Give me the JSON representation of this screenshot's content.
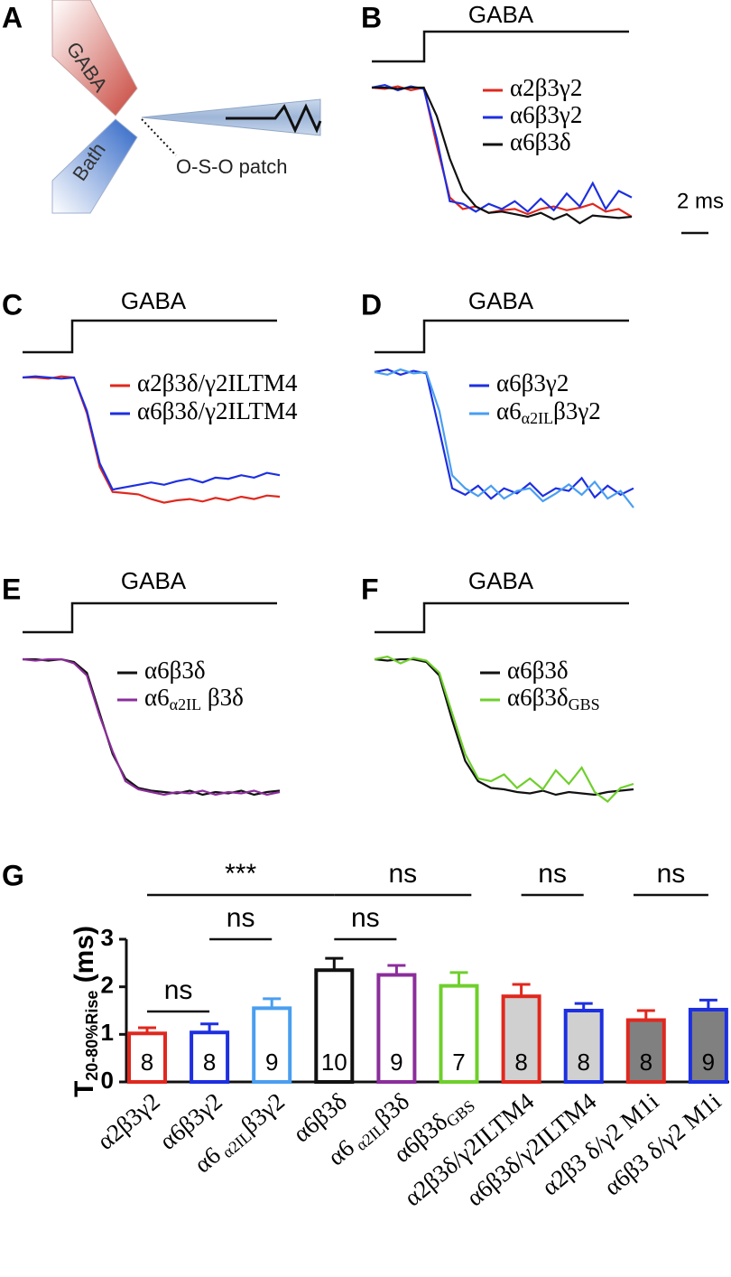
{
  "diagram": {
    "label": "A",
    "inlet": "GABA",
    "bath": "Bath",
    "patch": "O-S-O patch"
  },
  "chart_data": [
    {
      "type": "line",
      "label": "B",
      "title": "GABA",
      "scale_bar": "2 ms",
      "xlim": [
        0,
        20
      ],
      "ylim": [
        0,
        1
      ],
      "x": [
        0,
        1,
        2,
        3,
        4,
        5,
        6,
        7,
        8,
        9,
        10,
        11,
        12,
        13,
        14,
        15,
        16,
        17,
        18,
        19,
        20
      ],
      "series": [
        {
          "name": "α2β3γ2",
          "color": "#e0281e",
          "values": [
            1,
            0.99,
            1.01,
            0.98,
            1.0,
            0.55,
            0.15,
            0.06,
            0.08,
            0.03,
            0.05,
            0.06,
            0.02,
            0.06,
            0.08,
            0.05,
            0.07,
            0.1,
            0.04,
            0.06,
            0.0
          ]
        },
        {
          "name": "α6β3γ2",
          "color": "#1d2fe0",
          "values": [
            1,
            1.02,
            0.98,
            1.01,
            0.99,
            0.6,
            0.12,
            0.1,
            0.04,
            0.1,
            0.06,
            0.12,
            0.04,
            0.14,
            0.05,
            0.18,
            0.08,
            0.26,
            0.06,
            0.2,
            0.15
          ]
        },
        {
          "name": "α6β3δ",
          "color": "#111111",
          "values": [
            1,
            1.0,
            0.99,
            1.0,
            1.0,
            0.78,
            0.45,
            0.2,
            0.08,
            0.03,
            0.04,
            0.02,
            0.0,
            0.03,
            -0.02,
            0.02,
            -0.05,
            0.01,
            0.0,
            -0.01,
            0.0
          ]
        }
      ]
    },
    {
      "type": "line",
      "label": "C",
      "title": "GABA",
      "xlim": [
        0,
        20
      ],
      "ylim": [
        0,
        1
      ],
      "x": [
        0,
        1,
        2,
        3,
        4,
        5,
        6,
        7,
        8,
        9,
        10,
        11,
        12,
        13,
        14,
        15,
        16,
        17,
        18,
        19,
        20
      ],
      "series": [
        {
          "name": "α2β3δ/γ2ILTM4",
          "color": "#e0281e",
          "values": [
            1,
            1,
            0.99,
            1.01,
            1,
            0.7,
            0.25,
            0.04,
            0.03,
            0.02,
            -0.02,
            -0.05,
            -0.03,
            -0.02,
            -0.04,
            -0.01,
            -0.03,
            0.0,
            -0.02,
            0.01,
            0.0
          ]
        },
        {
          "name": "α6β3δ/γ2ILTM4",
          "color": "#1d2fe0",
          "values": [
            1,
            1.01,
            1,
            0.99,
            1,
            0.72,
            0.28,
            0.06,
            0.08,
            0.1,
            0.12,
            0.1,
            0.13,
            0.15,
            0.12,
            0.16,
            0.15,
            0.18,
            0.16,
            0.2,
            0.18
          ]
        }
      ]
    },
    {
      "type": "line",
      "label": "D",
      "title": "GABA",
      "xlim": [
        0,
        20
      ],
      "ylim": [
        0,
        1
      ],
      "x": [
        0,
        1,
        2,
        3,
        4,
        5,
        6,
        7,
        8,
        9,
        10,
        11,
        12,
        13,
        14,
        15,
        16,
        17,
        18,
        19,
        20
      ],
      "series": [
        {
          "name": "α6β3γ2",
          "color": "#1d2fe0",
          "values": [
            1,
            1.02,
            0.98,
            1.01,
            0.99,
            0.55,
            0.1,
            0.05,
            0.12,
            0.02,
            0.1,
            0.06,
            0.14,
            0.04,
            0.1,
            0.08,
            0.18,
            0.03,
            0.12,
            0.05,
            0.1
          ]
        },
        {
          "name": [
            "α6",
            "α2IL",
            "β3γ2"
          ],
          "color": "#4a9ef0",
          "values": [
            1,
            0.98,
            1.02,
            0.99,
            1.0,
            0.7,
            0.2,
            0.1,
            0.04,
            0.12,
            0.02,
            0.08,
            0.1,
            0.0,
            0.06,
            0.13,
            0.05,
            0.15,
            0.02,
            0.08,
            -0.05
          ]
        }
      ]
    },
    {
      "type": "line",
      "label": "E",
      "title": "GABA",
      "xlim": [
        0,
        20
      ],
      "ylim": [
        0,
        1
      ],
      "x": [
        0,
        1,
        2,
        3,
        4,
        5,
        6,
        7,
        8,
        9,
        10,
        11,
        12,
        13,
        14,
        15,
        16,
        17,
        18,
        19,
        20
      ],
      "series": [
        {
          "name": "α6β3δ",
          "color": "#111111",
          "values": [
            1,
            1,
            0.99,
            1.0,
            0.98,
            0.9,
            0.6,
            0.3,
            0.12,
            0.05,
            0.03,
            0.02,
            0.01,
            0.03,
            0.0,
            0.02,
            0.01,
            0.03,
            0.0,
            0.02,
            0.03
          ]
        },
        {
          "name": [
            "α6",
            "α2IL",
            " β3δ"
          ],
          "color": "#8b2d9b",
          "values": [
            1,
            0.99,
            1.0,
            1.0,
            0.97,
            0.88,
            0.58,
            0.32,
            0.1,
            0.04,
            0.02,
            0.0,
            0.02,
            0.01,
            0.03,
            0.0,
            0.02,
            0.01,
            0.03,
            0.0,
            0.02
          ]
        }
      ]
    },
    {
      "type": "line",
      "label": "F",
      "title": "GABA",
      "xlim": [
        0,
        20
      ],
      "ylim": [
        0,
        1
      ],
      "x": [
        0,
        1,
        2,
        3,
        4,
        5,
        6,
        7,
        8,
        9,
        10,
        11,
        12,
        13,
        14,
        15,
        16,
        17,
        18,
        19,
        20
      ],
      "series": [
        {
          "name": "α6β3δ",
          "color": "#111111",
          "values": [
            1,
            0.99,
            1.0,
            1.0,
            0.98,
            0.88,
            0.55,
            0.25,
            0.1,
            0.05,
            0.04,
            0.02,
            0.01,
            0.03,
            0.0,
            0.02,
            0.01,
            0.0,
            0.02,
            0.03,
            0.04
          ]
        },
        {
          "name": [
            "α6β3δ",
            "GBS"
          ],
          "color": "#6fcf2c",
          "values": [
            1,
            1.02,
            0.97,
            1.01,
            0.99,
            0.9,
            0.6,
            0.3,
            0.12,
            0.1,
            0.15,
            0.05,
            0.12,
            0.04,
            0.18,
            0.08,
            0.2,
            0.02,
            -0.05,
            0.05,
            0.08
          ]
        }
      ]
    },
    {
      "type": "bar",
      "label": "G",
      "ylabel": [
        "T",
        "20-80%Rise",
        " (ms)"
      ],
      "categories": [
        [
          "α2β3γ2"
        ],
        [
          "α6β3γ2"
        ],
        [
          "α6",
          " α2IL",
          "β3γ2"
        ],
        [
          "α6β3δ"
        ],
        [
          "α6",
          " α2IL",
          "β3δ"
        ],
        [
          "α6β3δ",
          "GBS"
        ],
        [
          "α2β3δ/γ2ILTM4"
        ],
        [
          "α6β3δ/γ2ILTM4"
        ],
        [
          "α2β3 δ/γ2 M1i"
        ],
        [
          "α6β3 δ/γ2 M1i"
        ]
      ],
      "values": [
        1.02,
        1.04,
        1.55,
        2.35,
        2.25,
        2.02,
        1.8,
        1.5,
        1.3,
        1.52
      ],
      "errors": [
        0.12,
        0.18,
        0.2,
        0.25,
        0.2,
        0.28,
        0.25,
        0.15,
        0.2,
        0.2
      ],
      "n": [
        8,
        8,
        9,
        10,
        9,
        7,
        8,
        8,
        8,
        9
      ],
      "colors": [
        "#e0281e",
        "#1d2fe0",
        "#4a9ef0",
        "#111111",
        "#8b2d9b",
        "#6fcf2c",
        "#e0281e",
        "#1d2fe0",
        "#e0281e",
        "#1d2fe0"
      ],
      "fills": [
        "#ffffff",
        "#ffffff",
        "#ffffff",
        "#ffffff",
        "#ffffff",
        "#ffffff",
        "#d0d0d0",
        "#d0d0d0",
        "#808080",
        "#808080"
      ],
      "ylim": [
        0,
        3
      ],
      "yticks": [
        0,
        1,
        2,
        3
      ],
      "annotations": [
        "***",
        "ns",
        "ns",
        "ns",
        "ns",
        "ns",
        "ns"
      ]
    }
  ]
}
